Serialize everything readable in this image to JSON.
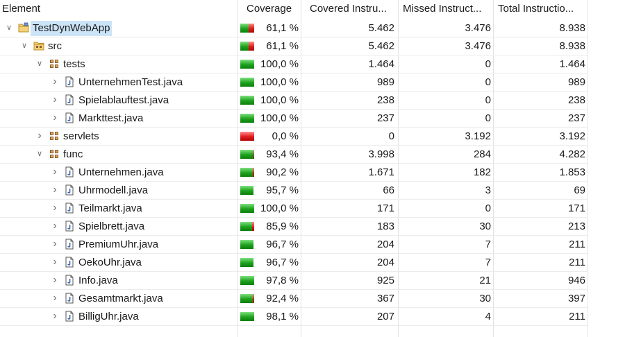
{
  "header": {
    "element": "Element",
    "coverage": "Coverage",
    "covered": "Covered Instru...",
    "missed": "Missed Instruct...",
    "total": "Total Instructio..."
  },
  "rows": [
    {
      "name": "TestDynWebApp",
      "icon": "project-folder-icon",
      "level": 0,
      "twisty": "expanded",
      "coverage": "61,1 %",
      "covered": "5.462",
      "missed": "3.476",
      "total": "8.938",
      "bar": 0.611,
      "selected": true
    },
    {
      "name": "src",
      "icon": "source-folder-icon",
      "level": 1,
      "twisty": "expanded",
      "coverage": "61,1 %",
      "covered": "5.462",
      "missed": "3.476",
      "total": "8.938",
      "bar": 0.611,
      "selected": false
    },
    {
      "name": "tests",
      "icon": "package-icon",
      "level": 2,
      "twisty": "expanded",
      "coverage": "100,0 %",
      "covered": "1.464",
      "missed": "0",
      "total": "1.464",
      "bar": 1.0
    },
    {
      "name": "UnternehmenTest.java",
      "icon": "java-file-icon",
      "level": 3,
      "twisty": "collapsed",
      "coverage": "100,0 %",
      "covered": "989",
      "missed": "0",
      "total": "989",
      "bar": 1.0
    },
    {
      "name": "Spielablauftest.java",
      "icon": "java-file-icon",
      "level": 3,
      "twisty": "collapsed",
      "coverage": "100,0 %",
      "covered": "238",
      "missed": "0",
      "total": "238",
      "bar": 1.0
    },
    {
      "name": "Markttest.java",
      "icon": "java-file-icon",
      "level": 3,
      "twisty": "collapsed",
      "coverage": "100,0 %",
      "covered": "237",
      "missed": "0",
      "total": "237",
      "bar": 1.0
    },
    {
      "name": "servlets",
      "icon": "package-icon",
      "level": 2,
      "twisty": "collapsed",
      "coverage": "0,0 %",
      "covered": "0",
      "missed": "3.192",
      "total": "3.192",
      "bar": 0.0
    },
    {
      "name": "func",
      "icon": "package-icon",
      "level": 2,
      "twisty": "expanded",
      "coverage": "93,4 %",
      "covered": "3.998",
      "missed": "284",
      "total": "4.282",
      "bar": 0.934
    },
    {
      "name": "Unternehmen.java",
      "icon": "java-file-icon",
      "level": 3,
      "twisty": "collapsed",
      "coverage": "90,2 %",
      "covered": "1.671",
      "missed": "182",
      "total": "1.853",
      "bar": 0.902
    },
    {
      "name": "Uhrmodell.java",
      "icon": "java-file-icon",
      "level": 3,
      "twisty": "collapsed",
      "coverage": "95,7 %",
      "covered": "66",
      "missed": "3",
      "total": "69",
      "bar": 0.957
    },
    {
      "name": "Teilmarkt.java",
      "icon": "java-file-icon",
      "level": 3,
      "twisty": "collapsed",
      "coverage": "100,0 %",
      "covered": "171",
      "missed": "0",
      "total": "171",
      "bar": 1.0
    },
    {
      "name": "Spielbrett.java",
      "icon": "java-file-icon",
      "level": 3,
      "twisty": "collapsed",
      "coverage": "85,9 %",
      "covered": "183",
      "missed": "30",
      "total": "213",
      "bar": 0.859
    },
    {
      "name": "PremiumUhr.java",
      "icon": "java-file-icon",
      "level": 3,
      "twisty": "collapsed",
      "coverage": "96,7 %",
      "covered": "204",
      "missed": "7",
      "total": "211",
      "bar": 0.967
    },
    {
      "name": "OekoUhr.java",
      "icon": "java-file-icon",
      "level": 3,
      "twisty": "collapsed",
      "coverage": "96,7 %",
      "covered": "204",
      "missed": "7",
      "total": "211",
      "bar": 0.967
    },
    {
      "name": "Info.java",
      "icon": "java-file-icon",
      "level": 3,
      "twisty": "collapsed",
      "coverage": "97,8 %",
      "covered": "925",
      "missed": "21",
      "total": "946",
      "bar": 0.978
    },
    {
      "name": "Gesamtmarkt.java",
      "icon": "java-file-icon",
      "level": 3,
      "twisty": "collapsed",
      "coverage": "92,4 %",
      "covered": "367",
      "missed": "30",
      "total": "397",
      "bar": 0.924
    },
    {
      "name": "BilligUhr.java",
      "icon": "java-file-icon",
      "level": 3,
      "twisty": "collapsed",
      "coverage": "98,1 %",
      "covered": "207",
      "missed": "4",
      "total": "211",
      "bar": 0.981
    }
  ]
}
